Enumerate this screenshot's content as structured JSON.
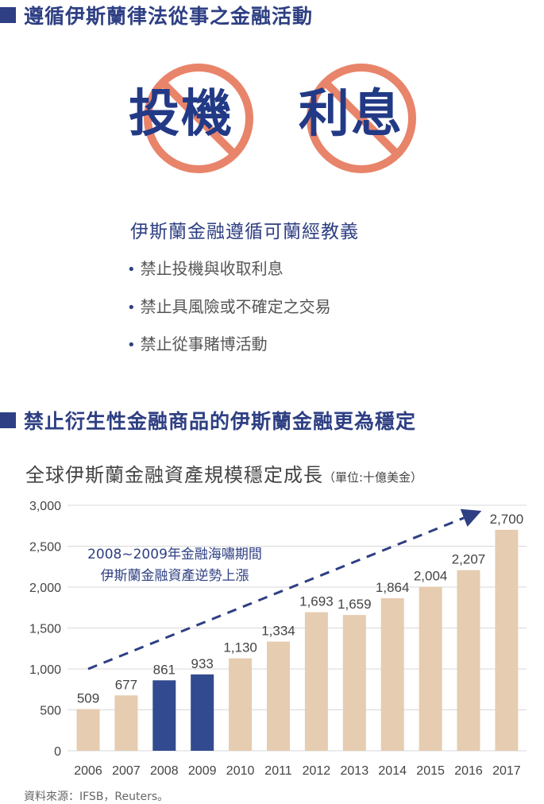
{
  "section1": {
    "title": "遵循伊斯蘭律法從事之金融活動"
  },
  "prohibited": [
    {
      "word": "投機",
      "icon": "prohibited-icon"
    },
    {
      "word": "利息",
      "icon": "prohibited-icon"
    }
  ],
  "teachings": {
    "title": "伊斯蘭金融遵循可蘭經教義",
    "items": [
      "禁止投機與收取利息",
      "禁止具風險或不確定之交易",
      "禁止從事賭博活動"
    ]
  },
  "section2": {
    "title": "禁止衍生性金融商品的伊斯蘭金融更為穩定"
  },
  "chart_title": {
    "main": "全球伊斯蘭金融資產規模穩定成長",
    "unit": "（單位:十億美金）"
  },
  "chart_data": {
    "type": "bar",
    "categories": [
      "2006",
      "2007",
      "2008",
      "2009",
      "2010",
      "2011",
      "2012",
      "2013",
      "2014",
      "2015",
      "2016",
      "2017"
    ],
    "values": [
      509,
      677,
      861,
      933,
      1130,
      1334,
      1693,
      1659,
      1864,
      2004,
      2207,
      2700
    ],
    "value_labels": [
      "509",
      "677",
      "861",
      "933",
      "1,130",
      "1,334",
      "1,693",
      "1,659",
      "1,864",
      "2,004",
      "2,207",
      "2,700"
    ],
    "highlight_categories": [
      "2008",
      "2009"
    ],
    "ylim": [
      0,
      3000
    ],
    "yticks": [
      0,
      500,
      1000,
      1500,
      2000,
      2500,
      3000
    ],
    "ytick_labels": [
      "0",
      "500",
      "1,000",
      "1,500",
      "2,000",
      "2,500",
      "3,000"
    ],
    "grid": true,
    "annotation": {
      "lines": [
        "2008~2009年金融海嘯期間",
        "伊斯蘭金融資產逆勢上漲"
      ]
    },
    "trend_arrow": {
      "from": [
        "2006",
        1000
      ],
      "to": [
        "2016",
        2900
      ],
      "style": "dashed"
    },
    "colors": {
      "bar": "#e6ccb0",
      "highlight": "#324a8f",
      "text": "#444444",
      "accent": "#2e3f83",
      "grid": "#d8d8d8"
    },
    "source": "資料來源：IFSB，Reuters。"
  },
  "colors": {
    "accent": "#2e3f83",
    "prohibit": "#e8846a",
    "word": "#223a86"
  }
}
